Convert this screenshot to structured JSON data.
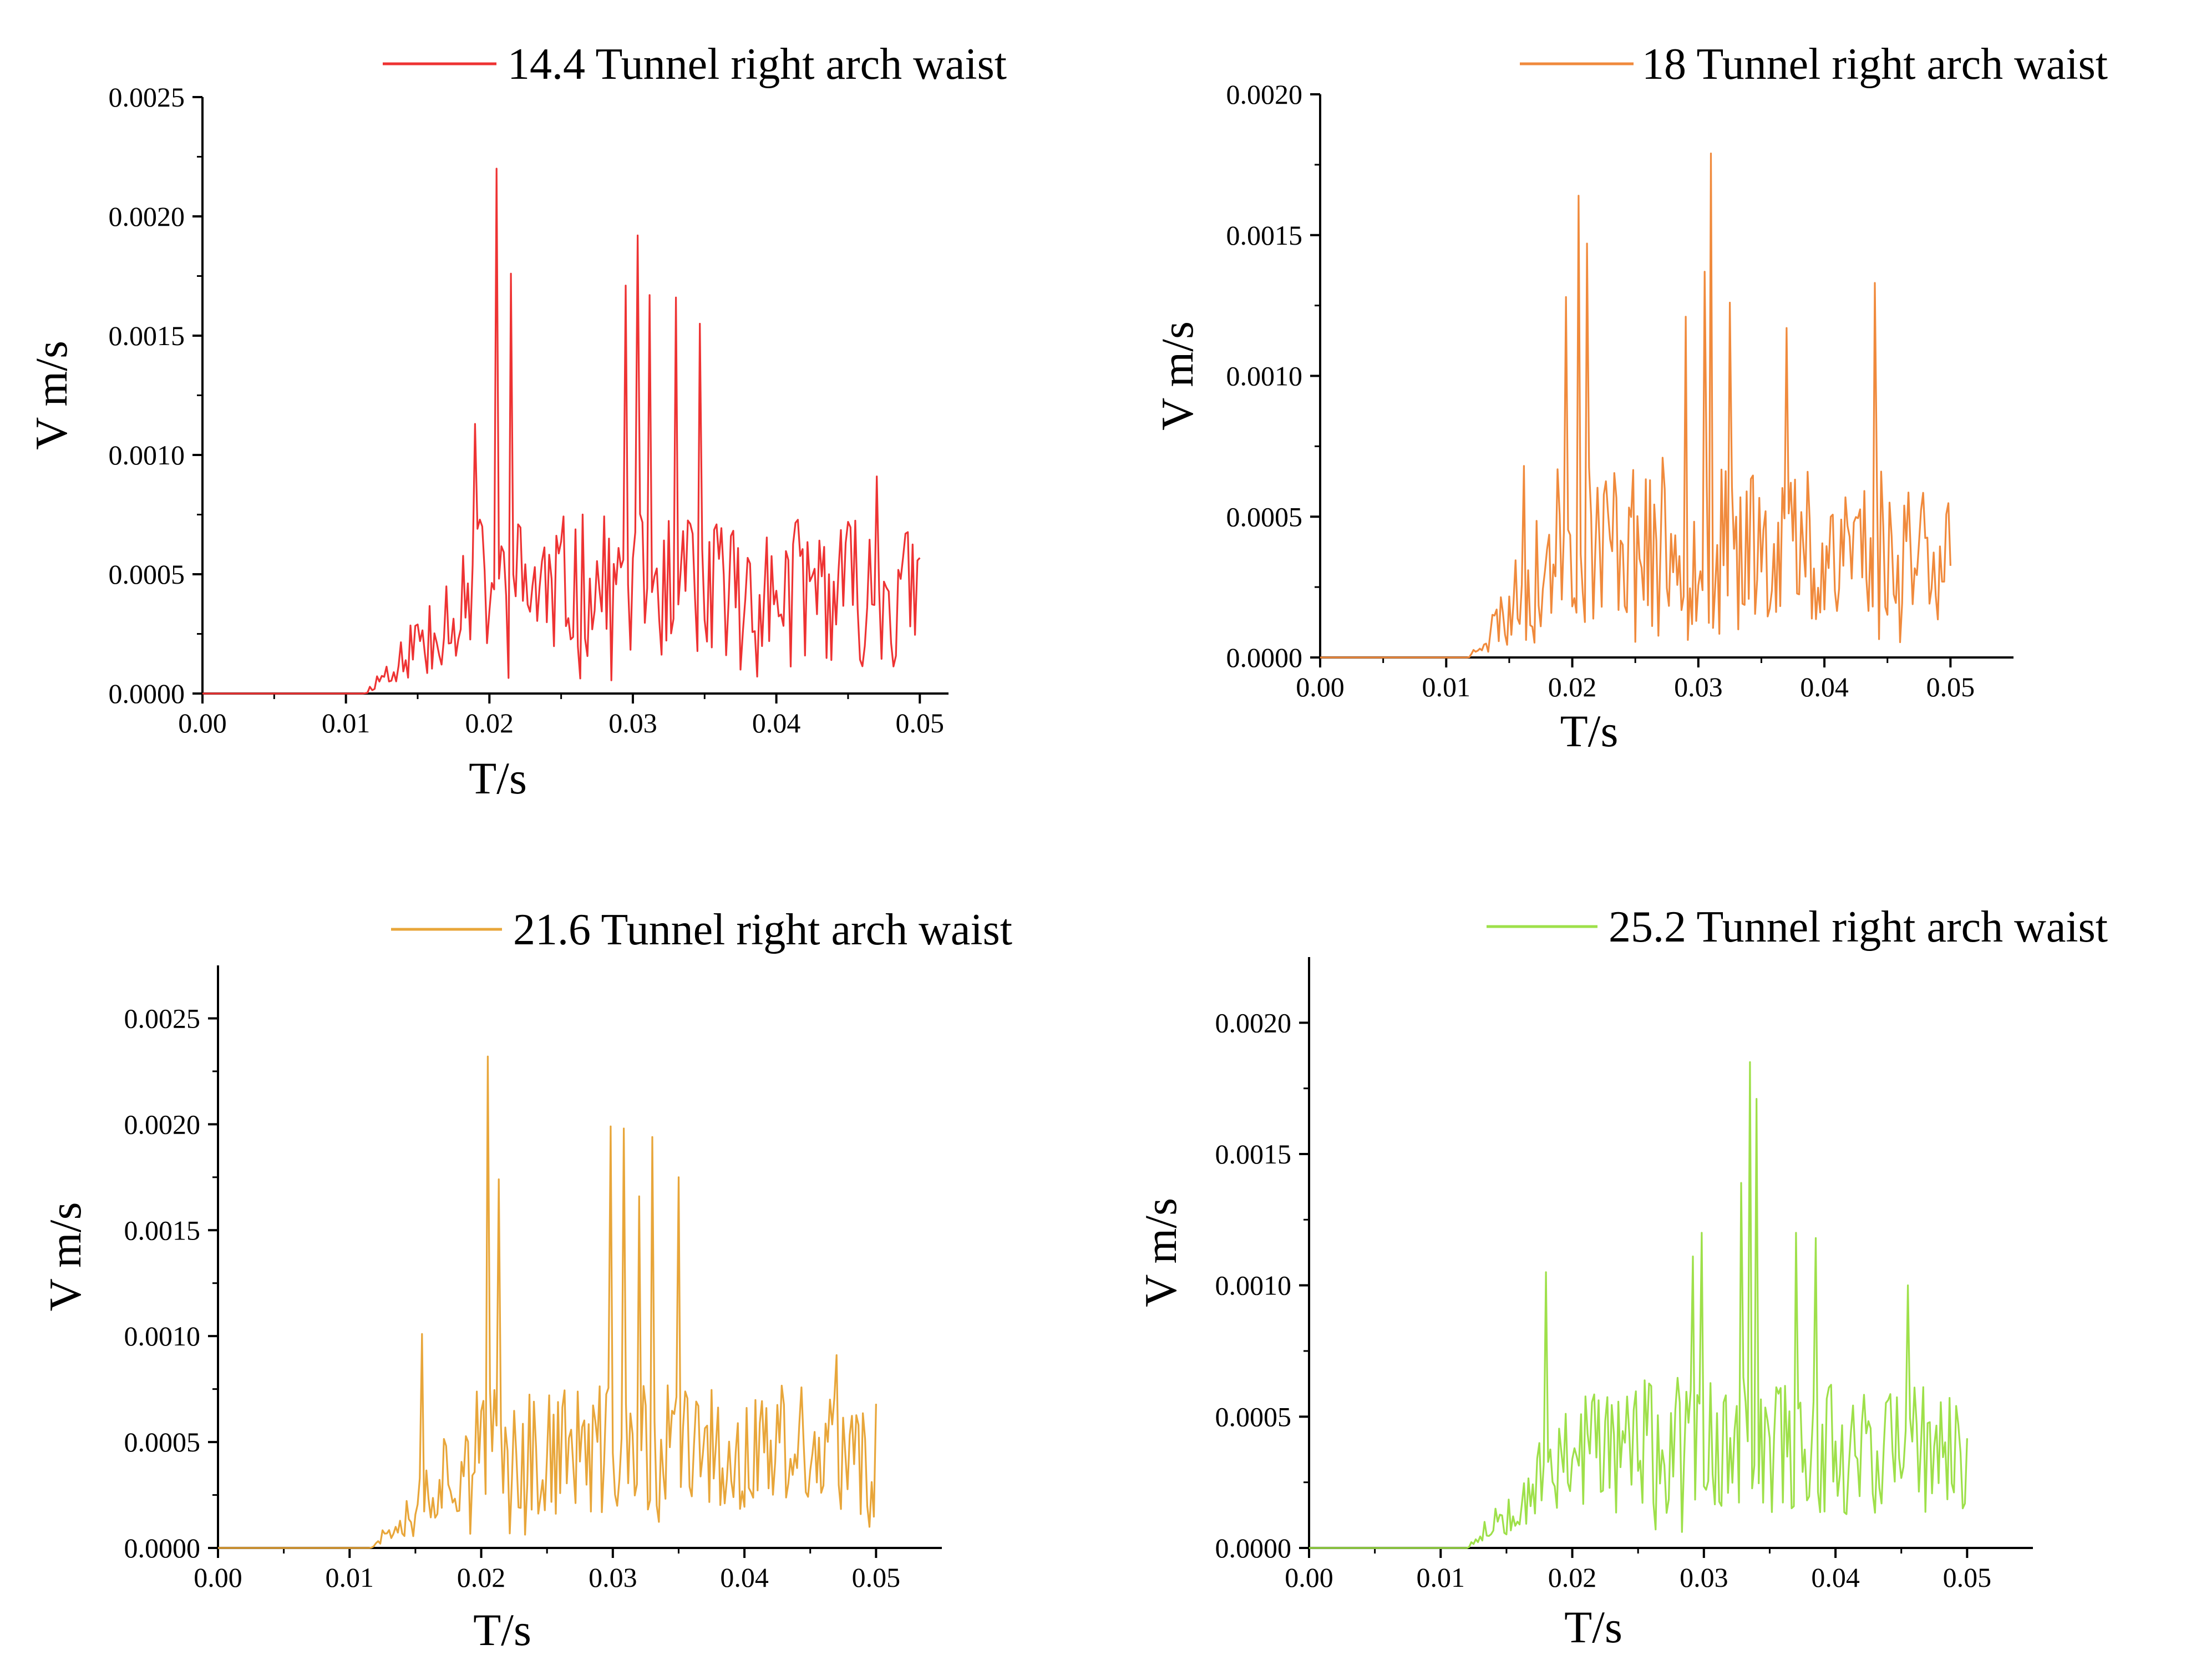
{
  "chart_data": [
    {
      "type": "line",
      "title": "",
      "series": [
        {
          "name": "14.4 Tunnel right arch waist",
          "color": "#ee3333",
          "peaks": [
            [
              0.0205,
              0.0022
            ],
            [
              0.0215,
              0.00176
            ],
            [
              0.0303,
              0.00192
            ],
            [
              0.0295,
              0.00171
            ],
            [
              0.0312,
              0.00167
            ],
            [
              0.033,
              0.00166
            ],
            [
              0.0347,
              0.00155
            ],
            [
              0.019,
              0.00113
            ],
            [
              0.047,
              0.00091
            ]
          ]
        }
      ],
      "xlabel": "T/s",
      "ylabel": "V m/s",
      "xlim": [
        0,
        0.052
      ],
      "ylim": [
        0,
        0.0025
      ],
      "xticks": [
        "0.00",
        "0.01",
        "0.02",
        "0.03",
        "0.04",
        "0.05"
      ],
      "yticks": [
        "0.0000",
        "0.0005",
        "0.0010",
        "0.0015",
        "0.0020",
        "0.0025"
      ],
      "t_start": 0.0113,
      "t_end": 0.05,
      "level": 0.00058,
      "seed": 11
    },
    {
      "type": "line",
      "title": "",
      "series": [
        {
          "name": "18 Tunnel right arch waist",
          "color": "#f08a3c",
          "peaks": [
            [
              0.0205,
              0.00164
            ],
            [
              0.0195,
              0.00128
            ],
            [
              0.0212,
              0.00147
            ],
            [
              0.031,
              0.00179
            ],
            [
              0.0305,
              0.00137
            ],
            [
              0.029,
              0.00121
            ],
            [
              0.0325,
              0.00126
            ],
            [
              0.037,
              0.00117
            ],
            [
              0.044,
              0.00133
            ],
            [
              0.0162,
              0.00068
            ]
          ]
        }
      ],
      "xlabel": "T/s",
      "ylabel": "V m/s",
      "xlim": [
        0,
        0.055
      ],
      "ylim": [
        0,
        0.002
      ],
      "xticks": [
        "0.00",
        "0.01",
        "0.02",
        "0.03",
        "0.04",
        "0.05"
      ],
      "yticks": [
        "0.0000",
        "0.0005",
        "0.0010",
        "0.0015",
        "0.0020"
      ],
      "t_start": 0.0118,
      "t_end": 0.05,
      "level": 0.00055,
      "seed": 23
    },
    {
      "type": "line",
      "title": "",
      "series": [
        {
          "name": "21.6 Tunnel right arch waist",
          "color": "#e8a63a",
          "peaks": [
            [
              0.0205,
              0.00232
            ],
            [
              0.0213,
              0.00174
            ],
            [
              0.0298,
              0.00199
            ],
            [
              0.0308,
              0.00198
            ],
            [
              0.033,
              0.00194
            ],
            [
              0.032,
              0.00166
            ],
            [
              0.035,
              0.00175
            ],
            [
              0.0155,
              0.00101
            ],
            [
              0.047,
              0.00091
            ]
          ]
        }
      ],
      "xlabel": "T/s",
      "ylabel": "V m/s",
      "xlim": [
        0,
        0.055
      ],
      "ylim": [
        0,
        0.00275
      ],
      "xticks": [
        "0.00",
        "0.01",
        "0.02",
        "0.03",
        "0.04",
        "0.05"
      ],
      "yticks": [
        "0.0000",
        "0.0005",
        "0.0010",
        "0.0015",
        "0.0020",
        "0.0025"
      ],
      "t_start": 0.0115,
      "t_end": 0.05,
      "level": 0.0006,
      "seed": 37
    },
    {
      "type": "line",
      "title": "",
      "series": [
        {
          "name": "25.2 Tunnel right arch waist",
          "color": "#9ee04a",
          "peaks": [
            [
              0.0335,
              0.00185
            ],
            [
              0.034,
              0.00171
            ],
            [
              0.0328,
              0.00139
            ],
            [
              0.0298,
              0.0012
            ],
            [
              0.0292,
              0.00111
            ],
            [
              0.037,
              0.0012
            ],
            [
              0.018,
              0.00105
            ],
            [
              0.0455,
              0.001
            ],
            [
              0.0385,
              0.00118
            ]
          ]
        }
      ],
      "xlabel": "T/s",
      "ylabel": "V m/s",
      "xlim": [
        0,
        0.055
      ],
      "ylim": [
        0,
        0.00225
      ],
      "xticks": [
        "0.00",
        "0.01",
        "0.02",
        "0.03",
        "0.04",
        "0.05"
      ],
      "yticks": [
        "0.0000",
        "0.0005",
        "0.0010",
        "0.0015",
        "0.0020"
      ],
      "t_start": 0.012,
      "t_end": 0.05,
      "level": 0.0005,
      "seed": 53
    }
  ]
}
